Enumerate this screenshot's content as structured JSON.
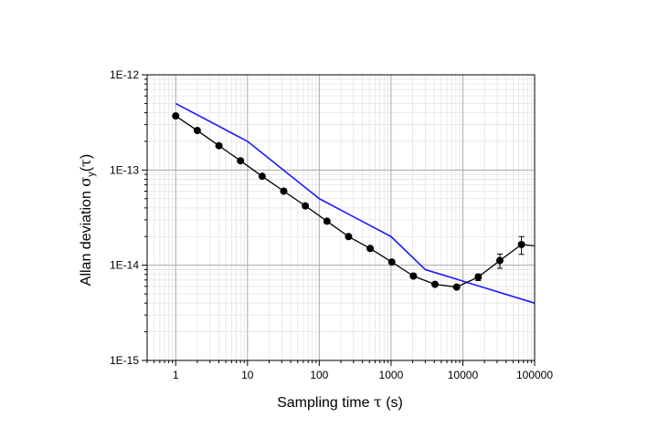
{
  "chart_data": {
    "type": "line",
    "title": "",
    "xlabel": "Sampling time τ (s)",
    "ylabel": "Allan deviation  σy(τ)",
    "xlabel_parts": {
      "prefix": "Sampling time ",
      "tau": "τ",
      "suffix": " (s)"
    },
    "ylabel_parts": {
      "prefix": "Allan deviation  ",
      "sigma": "σ",
      "subscript": "y",
      "paren_open": "(",
      "tau": "τ",
      "paren_close": ")"
    },
    "xscale": "log",
    "yscale": "log",
    "xlim": [
      0.4,
      100000
    ],
    "ylim": [
      1e-15,
      1e-12
    ],
    "x_ticks": [
      1,
      10,
      100,
      1000,
      10000,
      100000
    ],
    "x_tick_labels": [
      "1",
      "10",
      "100",
      "1000",
      "10000",
      "100000"
    ],
    "y_ticks": [
      1e-15,
      1e-14,
      1e-13,
      1e-12
    ],
    "y_tick_labels": [
      "1E-15",
      "1E-14",
      "1E-13",
      "1E-12"
    ],
    "grid": {
      "major": true,
      "minor": true
    },
    "legend": "none",
    "series": [
      {
        "style": "line",
        "color": "#1a1aff",
        "x": [
          1,
          10,
          100,
          1000,
          3000,
          100000
        ],
        "y": [
          5e-13,
          2e-13,
          5e-14,
          2e-14,
          9e-15,
          4e-15
        ]
      },
      {
        "style": "line+markers+errorbars",
        "color": "#000000",
        "x": [
          1,
          2,
          4,
          8,
          16,
          32,
          64,
          128,
          256,
          512,
          1024,
          2048,
          4096,
          8192,
          16384,
          32768,
          65536,
          100000
        ],
        "y": [
          3.7e-13,
          2.6e-13,
          1.8e-13,
          1.25e-13,
          8.6e-14,
          6e-14,
          4.2e-14,
          2.9e-14,
          2e-14,
          1.5e-14,
          1.08e-14,
          7.7e-15,
          6.3e-15,
          5.9e-15,
          7.5e-15,
          1.12e-14,
          1.65e-14,
          1.6e-14
        ],
        "y_err": [
          0,
          0,
          0,
          0,
          0,
          0,
          0,
          0,
          0,
          0,
          0,
          0,
          0,
          0,
          6e-16,
          1.9e-15,
          3.5e-15,
          0
        ],
        "markers": [
          true,
          true,
          true,
          true,
          true,
          true,
          true,
          true,
          true,
          true,
          true,
          true,
          true,
          true,
          true,
          true,
          true,
          false
        ]
      }
    ]
  }
}
